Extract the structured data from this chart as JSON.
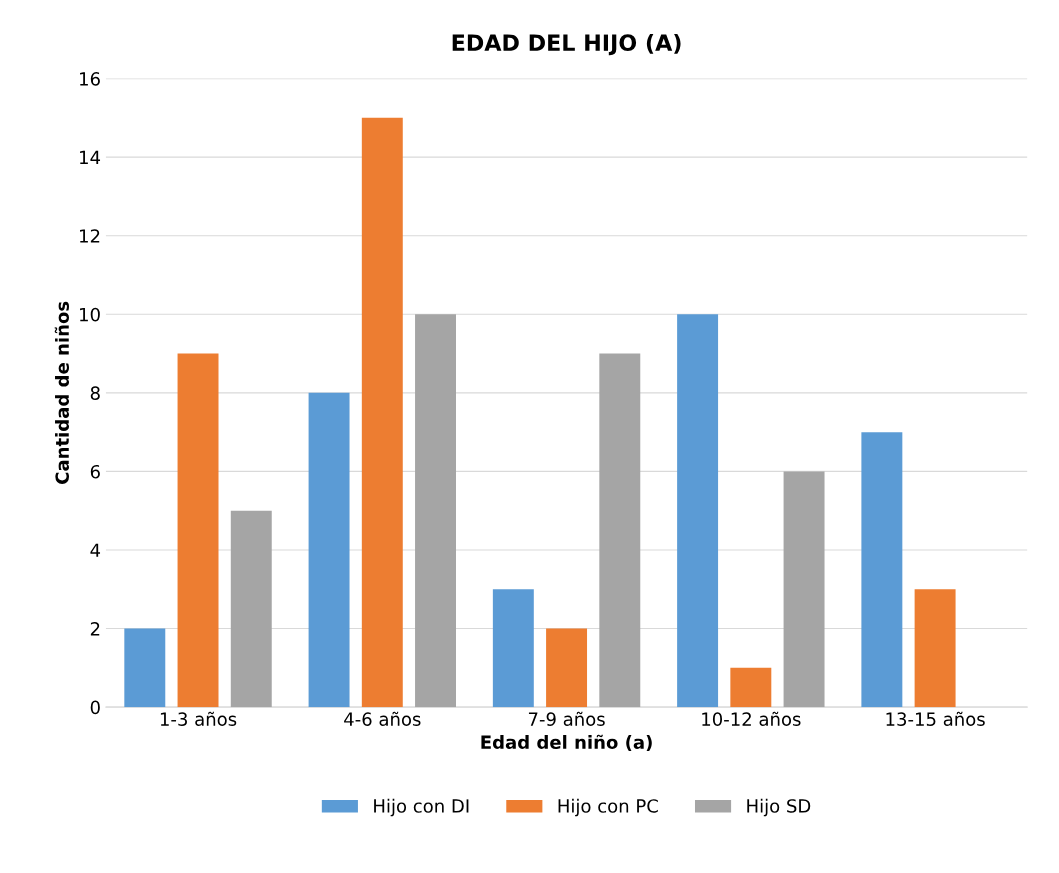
{
  "chart_data": {
    "type": "bar",
    "title": "EDAD DEL HIJO (A)",
    "xlabel": "Edad del niño (a)",
    "ylabel": "Cantidad de niños",
    "categories": [
      "1-3 años",
      "4-6 años",
      "7-9 años",
      "10-12 años",
      "13-15 años"
    ],
    "series": [
      {
        "name": "Hijo con DI",
        "color": "#5b9bd5",
        "values": [
          2,
          8,
          3,
          10,
          7
        ]
      },
      {
        "name": "Hijo con PC",
        "color": "#ed7d31",
        "values": [
          9,
          15,
          2,
          1,
          3
        ]
      },
      {
        "name": "Hijo SD",
        "color": "#a5a5a5",
        "values": [
          5,
          10,
          9,
          6,
          0
        ]
      }
    ],
    "ylim": [
      0,
      16
    ],
    "yticks": [
      0,
      2,
      4,
      6,
      8,
      10,
      12,
      14,
      16
    ],
    "grid": "y",
    "legend": "bottom"
  }
}
